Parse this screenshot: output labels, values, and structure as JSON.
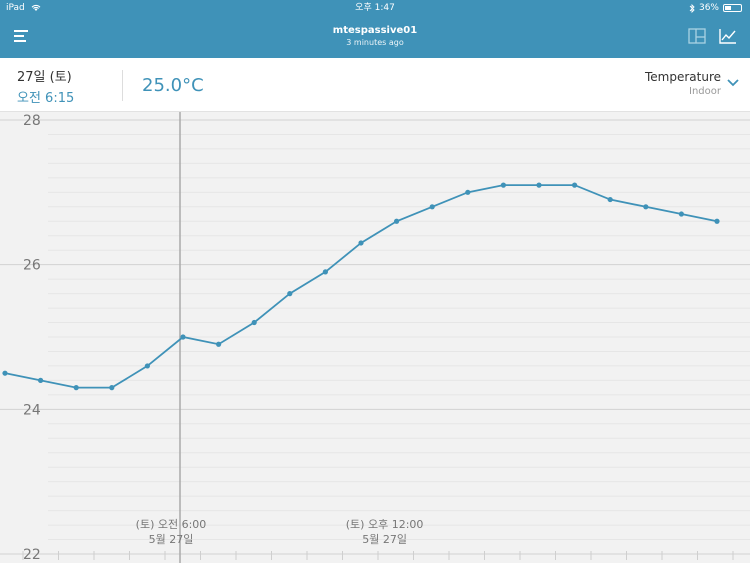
{
  "status_bar": {
    "device": "iPad",
    "time": "오후 1:47",
    "battery": "36%"
  },
  "nav": {
    "title": "mtespassive01",
    "subtitle": "3 minutes ago"
  },
  "header": {
    "date": "27일 (토)",
    "time": "오전 6:15",
    "reading": "25.0°C",
    "metric": "Temperature",
    "location": "Indoor"
  },
  "colors": {
    "accent": "#3f92b8",
    "nav_bg": "#3f92b8",
    "chart_bg": "#f2f2f2"
  },
  "icons": [
    "menu-icon",
    "layout-icon",
    "line-chart-icon",
    "chevron-down-icon",
    "wifi-icon",
    "bluetooth-icon",
    "battery-icon"
  ],
  "chart_data": {
    "type": "line",
    "ylim": [
      22,
      28
    ],
    "yticks": [
      "22",
      "24",
      "26",
      "28"
    ],
    "cursor_hour": 5.0,
    "x_labels": [
      {
        "hour": 5.0,
        "line1": "(토) 오전 6:00",
        "line2": "5월 27일"
      },
      {
        "hour": 11.0,
        "line1": "(토) 오후 12:00",
        "line2": "5월 27일"
      }
    ],
    "series": [
      {
        "x": [
          0,
          1,
          2,
          3,
          4,
          5,
          6,
          7,
          8,
          9,
          10,
          11,
          12,
          13,
          14,
          15,
          16,
          17,
          18,
          19,
          20
        ],
        "y": [
          24.5,
          24.4,
          24.3,
          24.3,
          24.6,
          25.0,
          24.9,
          25.2,
          25.6,
          25.9,
          26.3,
          26.6,
          26.8,
          27.0,
          27.1,
          27.1,
          27.1,
          26.9,
          26.8,
          26.7,
          26.6
        ]
      }
    ]
  }
}
